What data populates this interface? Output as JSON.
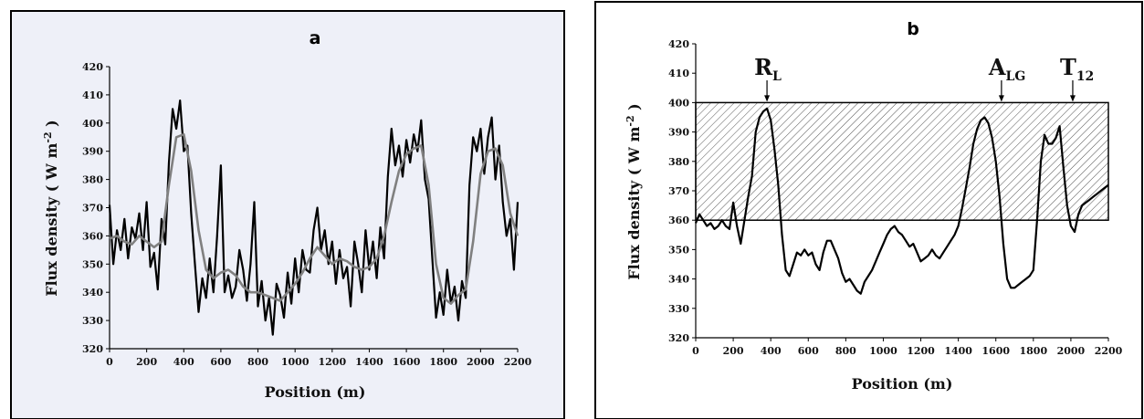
{
  "chart_data": [
    {
      "panel": "a",
      "type": "line",
      "xlabel": "Position (m)",
      "ylabel": "Flux density ( W m",
      "ylabel_sup": "-2",
      "ylabel_close": " )",
      "xlim": [
        0,
        2200
      ],
      "ylim": [
        320,
        420
      ],
      "xticks": [
        0,
        200,
        400,
        600,
        800,
        1000,
        1200,
        1400,
        1600,
        1800,
        2000,
        2200
      ],
      "yticks": [
        320,
        330,
        340,
        350,
        360,
        370,
        380,
        390,
        400,
        410,
        420
      ],
      "background": "#eef0f8",
      "series": [
        {
          "color": "#000000",
          "x": [
            0,
            20,
            40,
            60,
            80,
            100,
            120,
            140,
            160,
            180,
            200,
            220,
            240,
            260,
            280,
            300,
            320,
            340,
            360,
            380,
            400,
            420,
            440,
            460,
            480,
            500,
            520,
            540,
            560,
            580,
            600,
            620,
            640,
            660,
            680,
            700,
            720,
            740,
            760,
            780,
            800,
            820,
            840,
            860,
            880,
            900,
            920,
            940,
            960,
            980,
            1000,
            1020,
            1040,
            1060,
            1080,
            1100,
            1120,
            1140,
            1160,
            1180,
            1200,
            1220,
            1240,
            1260,
            1280,
            1300,
            1320,
            1340,
            1360,
            1380,
            1400,
            1420,
            1440,
            1460,
            1480,
            1500,
            1520,
            1540,
            1560,
            1580,
            1600,
            1620,
            1640,
            1660,
            1680,
            1700,
            1720,
            1740,
            1760,
            1780,
            1800,
            1820,
            1840,
            1860,
            1880,
            1900,
            1920,
            1940,
            1960,
            1980,
            2000,
            2020,
            2040,
            2060,
            2080,
            2100,
            2120,
            2140,
            2160,
            2180,
            2200
          ],
          "y": [
            371,
            350,
            362,
            355,
            366,
            352,
            363,
            359,
            368,
            355,
            372,
            349,
            354,
            341,
            366,
            357,
            386,
            405,
            398,
            408,
            390,
            392,
            368,
            350,
            333,
            345,
            338,
            352,
            340,
            360,
            385,
            340,
            346,
            338,
            342,
            355,
            348,
            337,
            350,
            372,
            335,
            344,
            330,
            338,
            325,
            343,
            339,
            331,
            347,
            336,
            352,
            340,
            355,
            348,
            347,
            362,
            370,
            355,
            362,
            350,
            358,
            343,
            355,
            345,
            349,
            335,
            358,
            350,
            340,
            362,
            348,
            358,
            345,
            363,
            352,
            381,
            398,
            385,
            392,
            381,
            394,
            386,
            396,
            390,
            401,
            380,
            373,
            352,
            331,
            340,
            332,
            348,
            336,
            342,
            330,
            344,
            338,
            378,
            395,
            390,
            398,
            382,
            395,
            402,
            380,
            392,
            372,
            360,
            366,
            348,
            372
          ]
        },
        {
          "color": "#808080",
          "x": [
            0,
            40,
            80,
            120,
            160,
            200,
            240,
            280,
            320,
            360,
            400,
            440,
            480,
            520,
            560,
            600,
            640,
            680,
            720,
            760,
            800,
            840,
            880,
            920,
            960,
            1000,
            1040,
            1080,
            1120,
            1160,
            1200,
            1240,
            1280,
            1320,
            1360,
            1400,
            1440,
            1480,
            1520,
            1560,
            1600,
            1640,
            1680,
            1720,
            1760,
            1800,
            1840,
            1880,
            1920,
            1960,
            2000,
            2040,
            2080,
            2120,
            2160,
            2200
          ],
          "y": [
            359,
            360,
            358,
            357,
            360,
            358,
            356,
            358,
            378,
            395,
            396,
            383,
            362,
            348,
            345,
            347,
            348,
            346,
            342,
            340,
            340,
            339,
            338,
            337,
            340,
            343,
            347,
            352,
            356,
            353,
            350,
            352,
            351,
            349,
            348,
            349,
            352,
            360,
            372,
            383,
            389,
            391,
            392,
            378,
            350,
            338,
            336,
            339,
            341,
            358,
            382,
            390,
            391,
            385,
            368,
            360
          ]
        }
      ]
    },
    {
      "panel": "b",
      "type": "line",
      "xlabel": "Position (m)",
      "ylabel": "Flux density ( W m",
      "ylabel_sup": "-2",
      "ylabel_close": " )",
      "xlim": [
        0,
        2200
      ],
      "ylim": [
        320,
        420
      ],
      "xticks": [
        0,
        200,
        400,
        600,
        800,
        1000,
        1200,
        1400,
        1600,
        1800,
        2000,
        2200
      ],
      "yticks": [
        320,
        330,
        340,
        350,
        360,
        370,
        380,
        390,
        400,
        410,
        420
      ],
      "background": "#ffffff",
      "band": {
        "y0": 360,
        "y1": 400,
        "x0": 0,
        "x1": 2200
      },
      "annotations": [
        {
          "main": "R",
          "sub": "L",
          "x": 380
        },
        {
          "main": "A",
          "sub": "LG",
          "x": 1630
        },
        {
          "main": "T",
          "sub": "12",
          "x": 2010
        }
      ],
      "series": [
        {
          "color": "#000000",
          "x": [
            0,
            20,
            40,
            60,
            80,
            100,
            120,
            140,
            160,
            180,
            200,
            220,
            240,
            260,
            280,
            300,
            320,
            340,
            360,
            380,
            400,
            420,
            440,
            460,
            480,
            500,
            520,
            540,
            560,
            580,
            600,
            620,
            640,
            660,
            680,
            700,
            720,
            740,
            760,
            780,
            800,
            820,
            840,
            860,
            880,
            900,
            920,
            940,
            960,
            980,
            1000,
            1020,
            1040,
            1060,
            1080,
            1100,
            1120,
            1140,
            1160,
            1180,
            1200,
            1220,
            1240,
            1260,
            1280,
            1300,
            1320,
            1340,
            1360,
            1380,
            1400,
            1420,
            1440,
            1460,
            1480,
            1500,
            1520,
            1540,
            1560,
            1580,
            1600,
            1620,
            1640,
            1660,
            1680,
            1700,
            1720,
            1740,
            1760,
            1780,
            1800,
            1820,
            1840,
            1860,
            1880,
            1900,
            1920,
            1940,
            1960,
            1980,
            2000,
            2020,
            2040,
            2060,
            2080,
            2100,
            2120,
            2140,
            2160,
            2180,
            2200
          ],
          "y": [
            359,
            362,
            360,
            358,
            359,
            357,
            358,
            360,
            358,
            357,
            366,
            358,
            352,
            360,
            368,
            375,
            390,
            395,
            397,
            398,
            394,
            384,
            372,
            355,
            343,
            341,
            345,
            349,
            348,
            350,
            348,
            349,
            345,
            343,
            349,
            353,
            353,
            350,
            347,
            342,
            339,
            340,
            338,
            336,
            335,
            339,
            341,
            343,
            346,
            349,
            352,
            355,
            357,
            358,
            356,
            355,
            353,
            351,
            352,
            349,
            346,
            347,
            348,
            350,
            348,
            347,
            349,
            351,
            353,
            355,
            358,
            364,
            371,
            378,
            386,
            391,
            394,
            395,
            393,
            388,
            380,
            368,
            352,
            340,
            337,
            337,
            338,
            339,
            340,
            341,
            343,
            360,
            380,
            389,
            386,
            386,
            388,
            392,
            378,
            365,
            358,
            356,
            362,
            365,
            366,
            367,
            368,
            369,
            370,
            371,
            372
          ]
        }
      ]
    }
  ]
}
